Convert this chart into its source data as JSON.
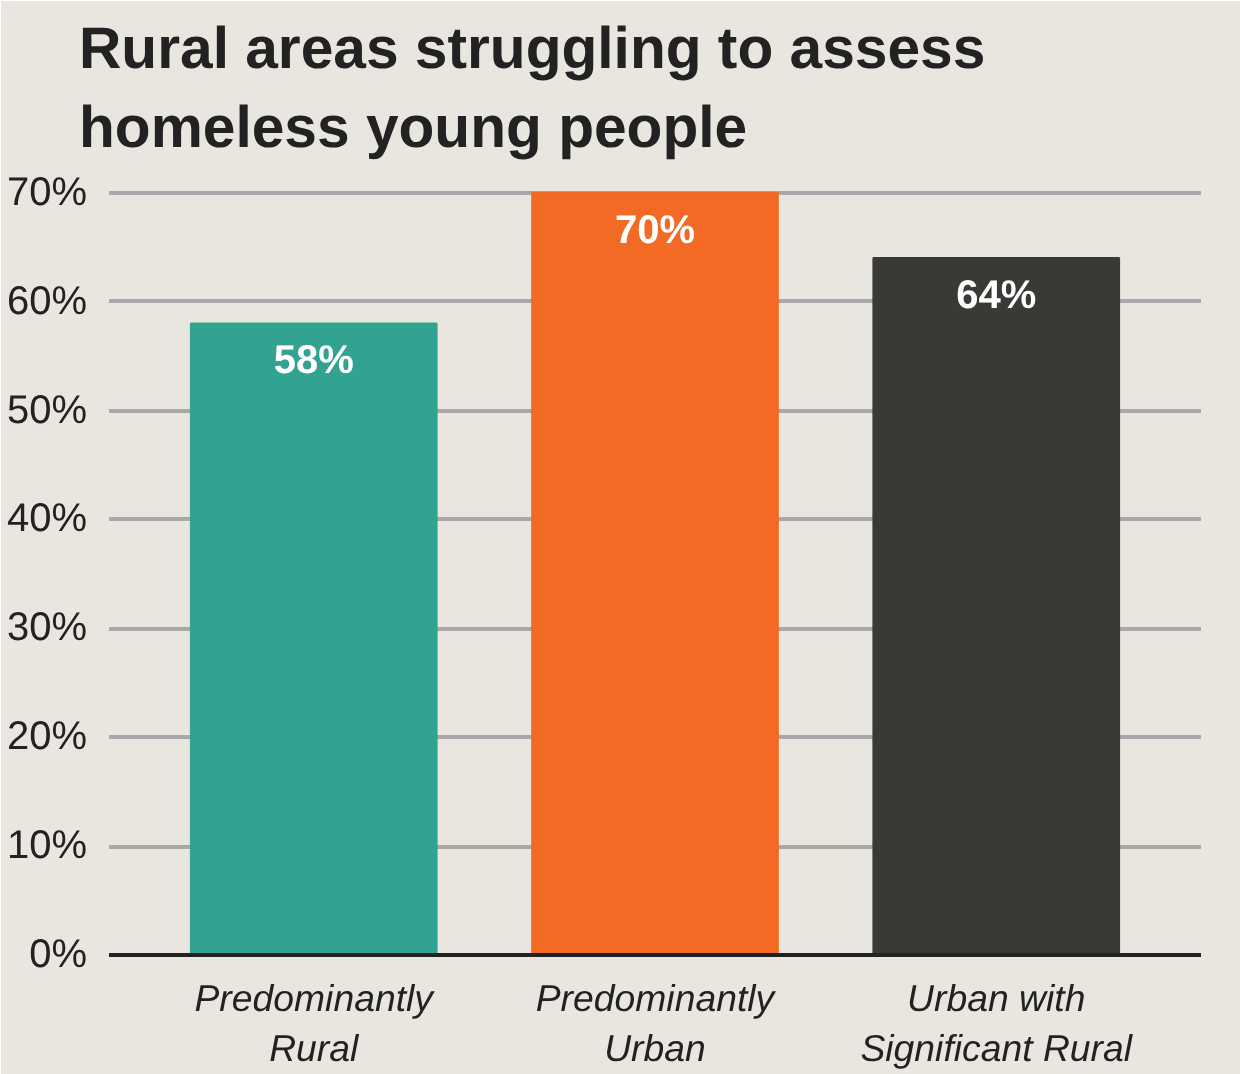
{
  "chart_data": {
    "type": "bar",
    "title": "Rural areas struggling to assess\nhomeless young people",
    "categories": [
      "Predominantly\nRural",
      "Predominantly\nUrban",
      "Urban with\nSignificant Rural"
    ],
    "values": [
      58,
      70,
      64
    ],
    "colors": [
      "#33a391",
      "#f26a24",
      "#393a35"
    ],
    "value_labels": [
      "58%",
      "70%",
      "64%"
    ],
    "ylim": [
      0,
      72
    ],
    "yticks": [
      {
        "value": 0,
        "label": "0%"
      },
      {
        "value": 10,
        "label": "10%"
      },
      {
        "value": 20,
        "label": "20%"
      },
      {
        "value": 30,
        "label": "30%"
      },
      {
        "value": 40,
        "label": "40%"
      },
      {
        "value": 50,
        "label": "50%"
      },
      {
        "value": 60,
        "label": "60%"
      },
      {
        "value": 70,
        "label": "70%"
      }
    ],
    "grid": "y"
  }
}
